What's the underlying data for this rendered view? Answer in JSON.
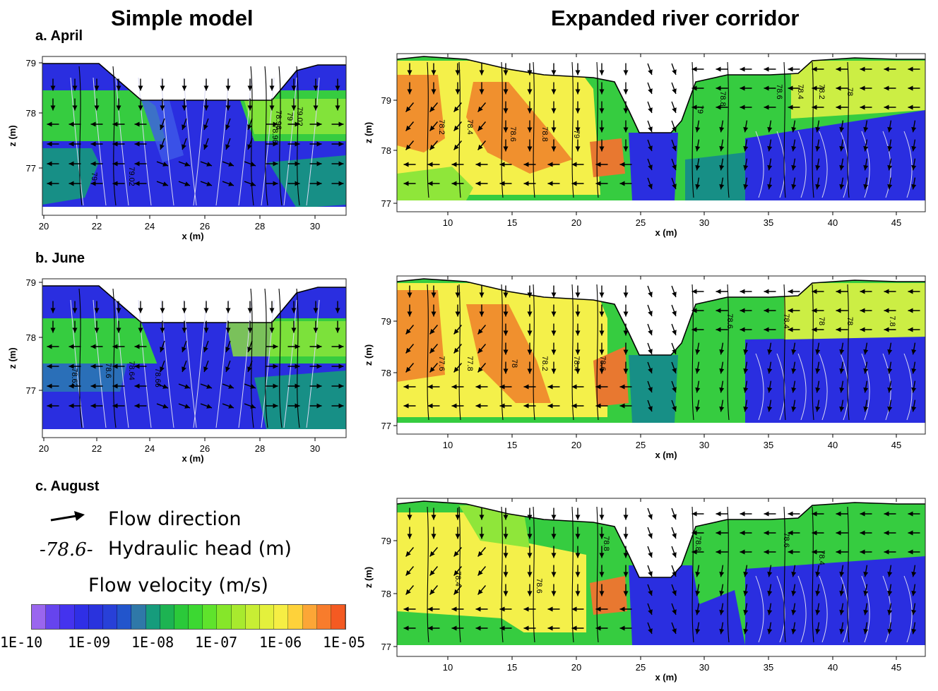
{
  "titles": {
    "left": "Simple model",
    "right": "Expanded river corridor"
  },
  "rows": [
    {
      "label": "a. April"
    },
    {
      "label": "b. June"
    },
    {
      "label": "c. August"
    }
  ],
  "axes": {
    "xlabel": "x (m)",
    "ylabel": "z (m)",
    "simple": {
      "xticks": [
        "20",
        "22",
        "24",
        "26",
        "28",
        "30"
      ],
      "zticks": [
        "79",
        "78",
        "77"
      ]
    },
    "corridor": {
      "xticks": [
        "10",
        "15",
        "20",
        "25",
        "30",
        "35",
        "40",
        "45"
      ],
      "zticks": [
        "79",
        "78",
        "77"
      ]
    }
  },
  "contours": {
    "april_simple": [
      "79.02",
      "79",
      "78.98",
      "78.96",
      "79",
      "79.02"
    ],
    "april_corridor": [
      "78.2",
      "78.4",
      "78.6",
      "78.8",
      "79",
      "79",
      "78.8",
      "78.6",
      "78.4",
      "78.2",
      "78"
    ],
    "june_simple": [
      "78.62",
      "78.6",
      "78.64",
      "78.66"
    ],
    "june_corridor": [
      "77.6",
      "77.8",
      "78",
      "78.2",
      "78.4",
      "78.6",
      "78.6",
      "78.4",
      "78",
      "78",
      "7.8"
    ],
    "august_corridor": [
      "78.4",
      "78.6",
      "78.8",
      "78.8",
      "78.6",
      "78.4"
    ]
  },
  "legend": {
    "flow_direction": "Flow direction",
    "head_sample": "78.6",
    "hydraulic_head": "Hydraulic head (m)",
    "velocity_title": "Flow velocity (m/s)",
    "colorbar_labels": [
      "1E-10",
      "1E-09",
      "1E-08",
      "1E-07",
      "1E-06",
      "1E-05"
    ],
    "colorbar_colors": [
      "#9a66ee",
      "#6644ee",
      "#4433ee",
      "#2f2fe6",
      "#2a33dd",
      "#2840d8",
      "#2255cc",
      "#2f78a8",
      "#169c7c",
      "#1db352",
      "#2bc93a",
      "#3cd832",
      "#5fe32c",
      "#86e62a",
      "#a8ea2e",
      "#c8ee34",
      "#e4f03c",
      "#f6ee44",
      "#fed23a",
      "#fca636",
      "#f87c2c",
      "#f45a22"
    ]
  },
  "colors": {
    "deep_blue": "#2a2ee0",
    "teal": "#178f86",
    "green": "#36cc40",
    "light_green": "#8fe63a",
    "yellow_green": "#ccee44",
    "yellow": "#f4f04a",
    "orange": "#f0902e",
    "dark_orange": "#e87830",
    "contour": "#000000",
    "streamline": "#d8d8f2"
  }
}
